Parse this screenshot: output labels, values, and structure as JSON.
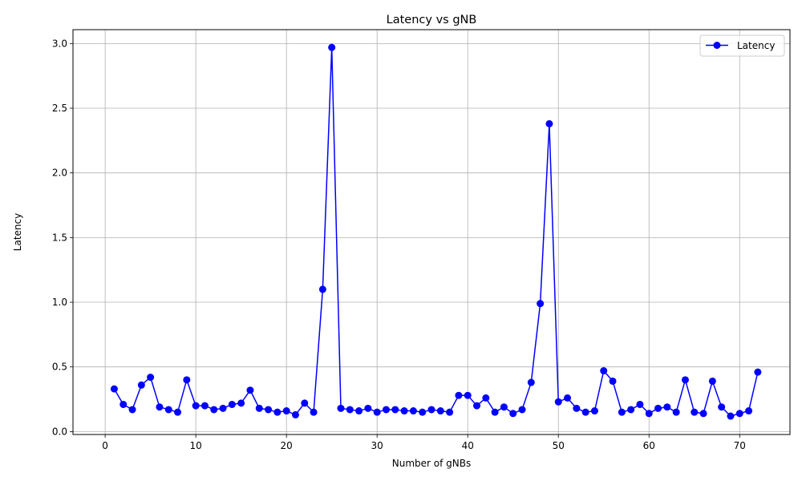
{
  "chart_data": {
    "type": "line",
    "title": "Latency vs gNB",
    "xlabel": "Number of gNBs",
    "ylabel": "Latency",
    "xlim": [
      -3.55,
      75.55
    ],
    "ylim": [
      -0.0225,
      3.1075
    ],
    "xticks": [
      0,
      10,
      20,
      30,
      40,
      50,
      60,
      70
    ],
    "xtick_labels": [
      "0",
      "10",
      "20",
      "30",
      "40",
      "50",
      "60",
      "70"
    ],
    "yticks": [
      0.0,
      0.5,
      1.0,
      1.5,
      2.0,
      2.5,
      3.0
    ],
    "ytick_labels": [
      "0.0",
      "0.5",
      "1.0",
      "1.5",
      "2.0",
      "2.5",
      "3.0"
    ],
    "grid": true,
    "legend": {
      "placement": "top-right",
      "entries": [
        "Latency"
      ]
    },
    "series": [
      {
        "name": "Latency",
        "color": "#0000ff",
        "marker": "circle",
        "x": [
          1,
          2,
          3,
          4,
          5,
          6,
          7,
          8,
          9,
          10,
          11,
          12,
          13,
          14,
          15,
          16,
          17,
          18,
          19,
          20,
          21,
          22,
          23,
          24,
          25,
          26,
          27,
          28,
          29,
          30,
          31,
          32,
          33,
          34,
          35,
          36,
          37,
          38,
          39,
          40,
          41,
          42,
          43,
          44,
          45,
          46,
          47,
          48,
          49,
          50,
          51,
          52,
          53,
          54,
          55,
          56,
          57,
          58,
          59,
          60,
          61,
          62,
          63,
          64,
          65,
          66,
          67,
          68,
          69,
          70,
          71,
          72
        ],
        "y": [
          0.33,
          0.21,
          0.17,
          0.36,
          0.42,
          0.19,
          0.17,
          0.15,
          0.4,
          0.2,
          0.2,
          0.17,
          0.18,
          0.21,
          0.22,
          0.32,
          0.18,
          0.17,
          0.15,
          0.16,
          0.13,
          0.22,
          0.15,
          1.1,
          2.97,
          0.18,
          0.17,
          0.16,
          0.18,
          0.15,
          0.17,
          0.17,
          0.16,
          0.16,
          0.15,
          0.17,
          0.16,
          0.15,
          0.28,
          0.28,
          0.2,
          0.26,
          0.15,
          0.19,
          0.14,
          0.17,
          0.38,
          0.99,
          2.38,
          0.23,
          0.26,
          0.18,
          0.15,
          0.16,
          0.47,
          0.39,
          0.15,
          0.17,
          0.21,
          0.14,
          0.18,
          0.19,
          0.15,
          0.4,
          0.15,
          0.14,
          0.39,
          0.19,
          0.12,
          0.14,
          0.16,
          0.46
        ]
      }
    ]
  }
}
